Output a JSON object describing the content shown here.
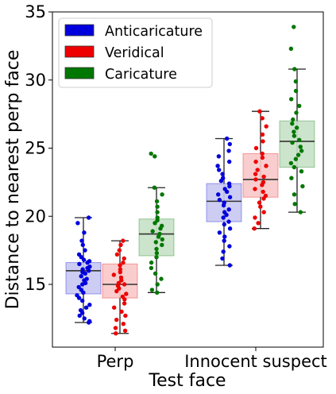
{
  "chart_data": {
    "type": "box",
    "xlabel": "Test face",
    "ylabel": "Distance to nearest perp face",
    "categories": [
      "Perp",
      "Innocent suspect"
    ],
    "ylim": [
      10,
      35
    ],
    "yticks": [
      15,
      20,
      25,
      30,
      35
    ],
    "grid": false,
    "legend_position": "top-left",
    "series": [
      {
        "name": "Anticaricature",
        "color": "#0000dd",
        "box_fill": "#c8c8f2",
        "stats": [
          {
            "min": 12.2,
            "q1": 14.3,
            "median": 16.0,
            "q3": 16.6,
            "max": 19.9
          },
          {
            "min": 16.4,
            "q1": 19.6,
            "median": 21.1,
            "q3": 22.4,
            "max": 25.7
          }
        ],
        "points": [
          [
            19.9,
            19.5,
            18.8,
            18.2,
            17.9,
            17.5,
            17.2,
            17.0,
            16.8,
            16.7,
            16.6,
            16.5,
            16.3,
            16.2,
            16.1,
            16.0,
            15.9,
            15.8,
            15.6,
            15.4,
            15.3,
            15.1,
            15.0,
            14.8,
            14.6,
            14.4,
            14.2,
            14.0,
            13.8,
            13.5,
            13.3,
            13.1,
            12.9,
            12.7,
            12.5,
            12.3,
            12.2
          ],
          [
            25.7,
            25.3,
            24.8,
            24.4,
            24.0,
            23.7,
            23.4,
            23.1,
            22.8,
            22.6,
            22.4,
            22.2,
            22.0,
            21.8,
            21.6,
            21.4,
            21.2,
            21.0,
            20.8,
            20.5,
            20.3,
            20.1,
            19.9,
            19.6,
            19.4,
            19.1,
            18.8,
            18.5,
            18.2,
            17.8,
            17.4,
            16.9,
            16.4
          ]
        ]
      },
      {
        "name": "Veridical",
        "color": "#ee0000",
        "box_fill": "#f8c8c8",
        "stats": [
          {
            "min": 11.4,
            "q1": 14.0,
            "median": 15.0,
            "q3": 16.5,
            "max": 18.2
          },
          {
            "min": 19.1,
            "q1": 21.4,
            "median": 22.7,
            "q3": 24.6,
            "max": 27.7
          }
        ],
        "points": [
          [
            18.2,
            17.9,
            17.5,
            17.2,
            16.9,
            16.6,
            16.4,
            16.1,
            15.9,
            15.7,
            15.5,
            15.3,
            15.1,
            15.0,
            14.9,
            14.7,
            14.5,
            14.3,
            14.1,
            13.9,
            13.6,
            13.3,
            13.0,
            12.7,
            12.4,
            12.1,
            11.8,
            11.6,
            11.4
          ],
          [
            27.7,
            27.2,
            26.6,
            26.0,
            25.5,
            25.0,
            24.6,
            24.3,
            24.0,
            23.7,
            23.4,
            23.1,
            22.9,
            22.7,
            22.5,
            22.3,
            22.0,
            21.8,
            21.5,
            21.3,
            21.0,
            20.7,
            20.3,
            19.9,
            19.5,
            19.1
          ]
        ]
      },
      {
        "name": "Caricature",
        "color": "#007700",
        "box_fill": "#c6e0c6",
        "stats": [
          {
            "min": 14.4,
            "q1": 17.1,
            "median": 18.7,
            "q3": 19.8,
            "max": 22.1
          },
          {
            "min": 20.3,
            "q1": 23.6,
            "median": 25.5,
            "q3": 27.0,
            "max": 30.8
          }
        ],
        "points": [
          [
            24.6,
            24.4,
            22.1,
            21.6,
            21.1,
            20.7,
            20.3,
            19.9,
            19.7,
            19.5,
            19.3,
            19.1,
            18.9,
            18.7,
            18.5,
            18.3,
            18.1,
            17.9,
            17.6,
            17.3,
            17.0,
            16.6,
            16.2,
            15.8,
            15.4,
            15.0,
            14.6,
            14.4
          ],
          [
            33.9,
            32.3,
            30.8,
            29.9,
            29.2,
            28.6,
            28.1,
            27.6,
            27.1,
            26.8,
            26.5,
            26.2,
            25.9,
            25.6,
            25.4,
            25.1,
            24.8,
            24.5,
            24.2,
            23.9,
            23.6,
            23.3,
            22.8,
            22.2,
            21.6,
            20.9,
            20.3
          ]
        ]
      }
    ]
  }
}
